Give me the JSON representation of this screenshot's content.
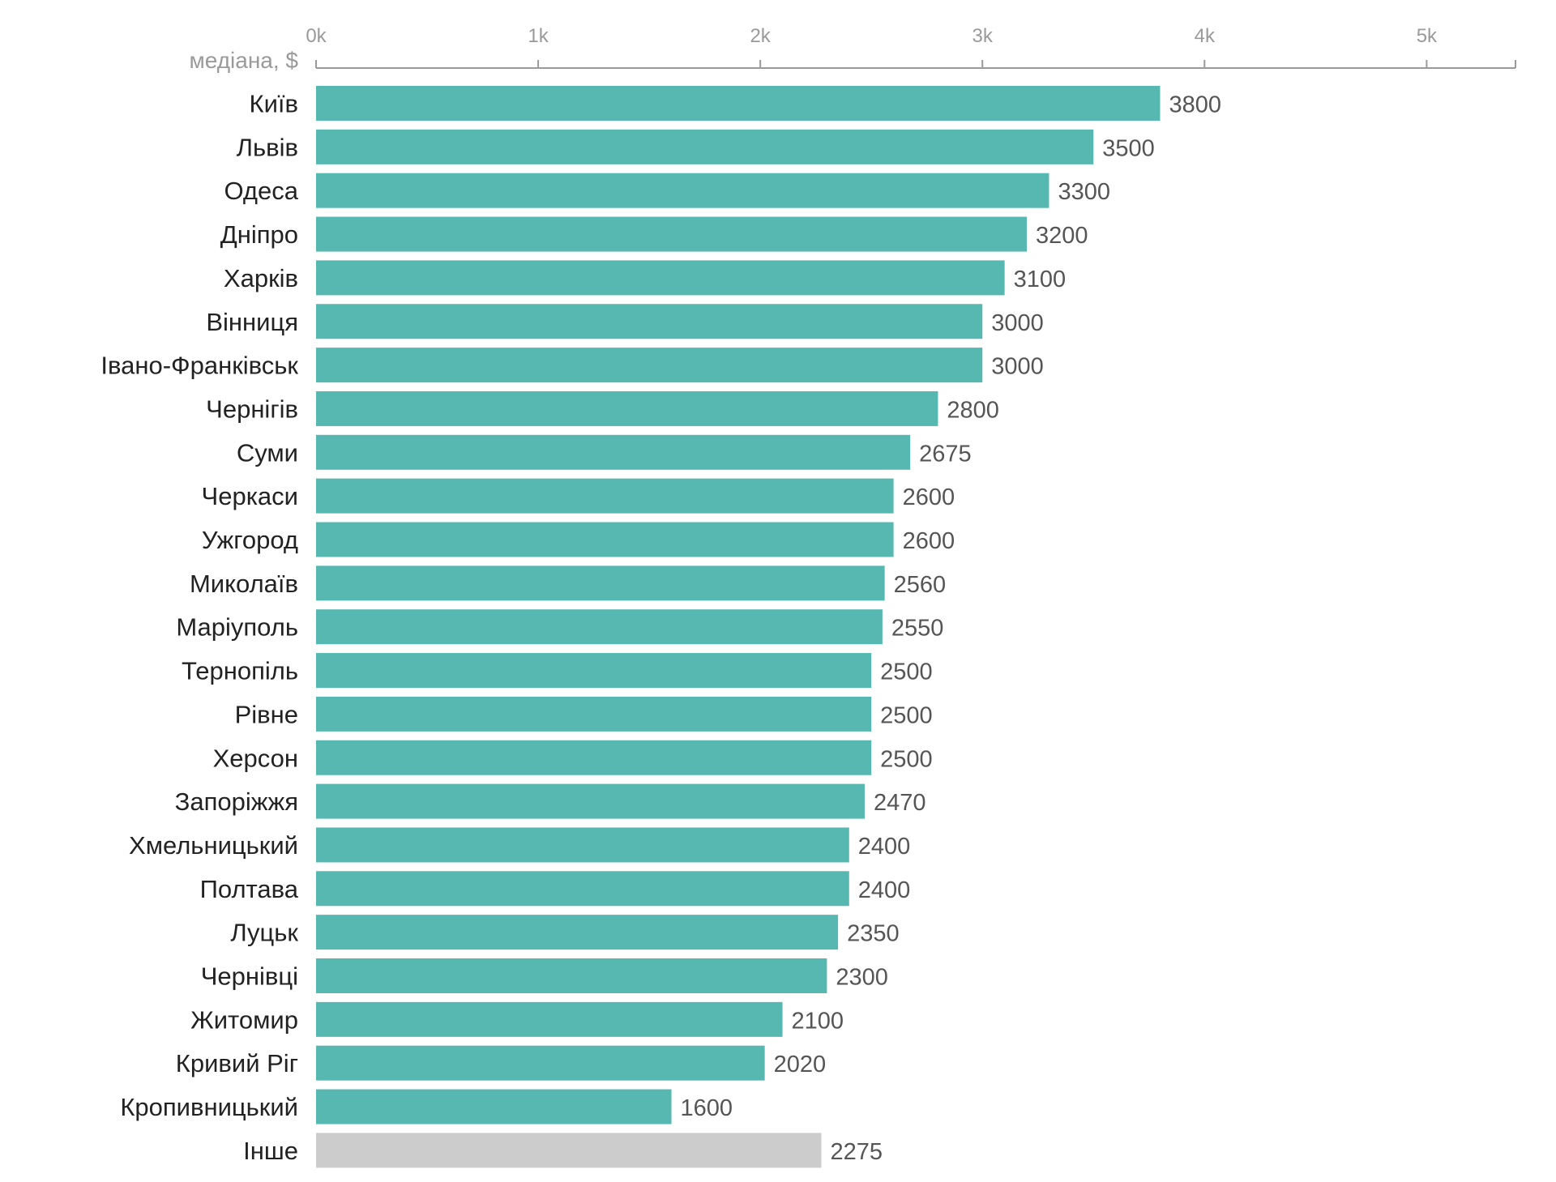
{
  "chart_data": {
    "type": "bar",
    "orientation": "horizontal",
    "title": "",
    "xlabel": "медіана, $",
    "ylabel": "",
    "xlim": [
      0,
      5400
    ],
    "ticks": [
      {
        "value": 0,
        "label": "0k"
      },
      {
        "value": 1000,
        "label": "1k"
      },
      {
        "value": 2000,
        "label": "2k"
      },
      {
        "value": 3000,
        "label": "3k"
      },
      {
        "value": 4000,
        "label": "4k"
      },
      {
        "value": 5000,
        "label": "5k"
      }
    ],
    "grid": false,
    "legend": "none",
    "colors": {
      "primary": "#56b8b0",
      "other": "#cccccc"
    },
    "categories": [
      "Київ",
      "Львів",
      "Одеса",
      "Дніпро",
      "Харків",
      "Вінниця",
      "Івано-Франківськ",
      "Чернігів",
      "Суми",
      "Черкаси",
      "Ужгород",
      "Миколаїв",
      "Маріуполь",
      "Тернопіль",
      "Рівне",
      "Херсон",
      "Запоріжжя",
      "Хмельницький",
      "Полтава",
      "Луцьк",
      "Чернівці",
      "Житомир",
      "Кривий Ріг",
      "Кропивницький",
      "Інше"
    ],
    "values": [
      3800,
      3500,
      3300,
      3200,
      3100,
      3000,
      3000,
      2800,
      2675,
      2600,
      2600,
      2560,
      2550,
      2500,
      2500,
      2500,
      2470,
      2400,
      2400,
      2350,
      2300,
      2100,
      2020,
      1600,
      2275
    ],
    "highlight": [
      "primary",
      "primary",
      "primary",
      "primary",
      "primary",
      "primary",
      "primary",
      "primary",
      "primary",
      "primary",
      "primary",
      "primary",
      "primary",
      "primary",
      "primary",
      "primary",
      "primary",
      "primary",
      "primary",
      "primary",
      "primary",
      "primary",
      "primary",
      "primary",
      "other"
    ]
  }
}
